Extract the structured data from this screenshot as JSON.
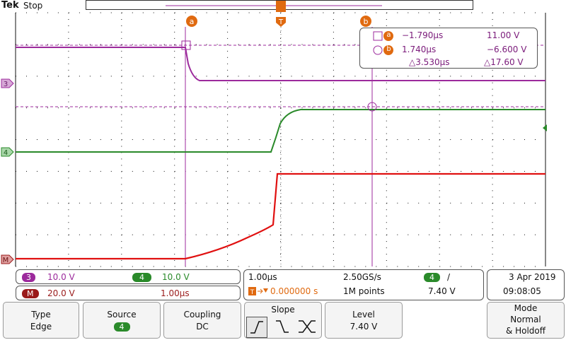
{
  "brand": "Tek",
  "acq_state": "Stop",
  "cursors": {
    "a_label": "a",
    "b_label": "b",
    "a_time": "−1.790µs",
    "a_volt": "11.00 V",
    "b_time": "1.740µs",
    "b_volt": "−6.600 V",
    "delta_time": "△3.530µs",
    "delta_volt": "△17.60 V",
    "trigger_marker": "T"
  },
  "channels": {
    "ch3": {
      "badge": "3",
      "scale": "10.0 V",
      "color": "#9c2a9c"
    },
    "ch4": {
      "badge": "4",
      "scale": "10.0 V",
      "color": "#2a8a2a"
    },
    "math": {
      "badge": "M",
      "scale": "20.0 V",
      "time": "1.00µs",
      "color": "#9a1a1a"
    }
  },
  "timebase": {
    "horizontal": "1.00µs",
    "sample_rate": "2.50GS/s",
    "trigger_pos": "0.000000 s",
    "record_length": "1M points",
    "trig_source": "4",
    "trig_slope_glyph": "/",
    "trig_level": "7.40 V"
  },
  "datetime": {
    "date": "3 Apr  2019",
    "time": "09:08:05"
  },
  "menu": {
    "type_label": "Type",
    "type_value": "Edge",
    "source_label": "Source",
    "source_value": "4",
    "coupling_label": "Coupling",
    "coupling_value": "DC",
    "slope_label": "Slope",
    "level_label": "Level",
    "level_value": "7.40 V",
    "mode_label": "Mode",
    "mode_value1": "Normal",
    "mode_value2": "& Holdoff"
  },
  "colors": {
    "ch3": "#9c2a9c",
    "ch4": "#2a8a2a",
    "math": "#e01010",
    "cursor": "#9c2a9c",
    "orange": "#e06a10",
    "grid": "#111111"
  }
}
